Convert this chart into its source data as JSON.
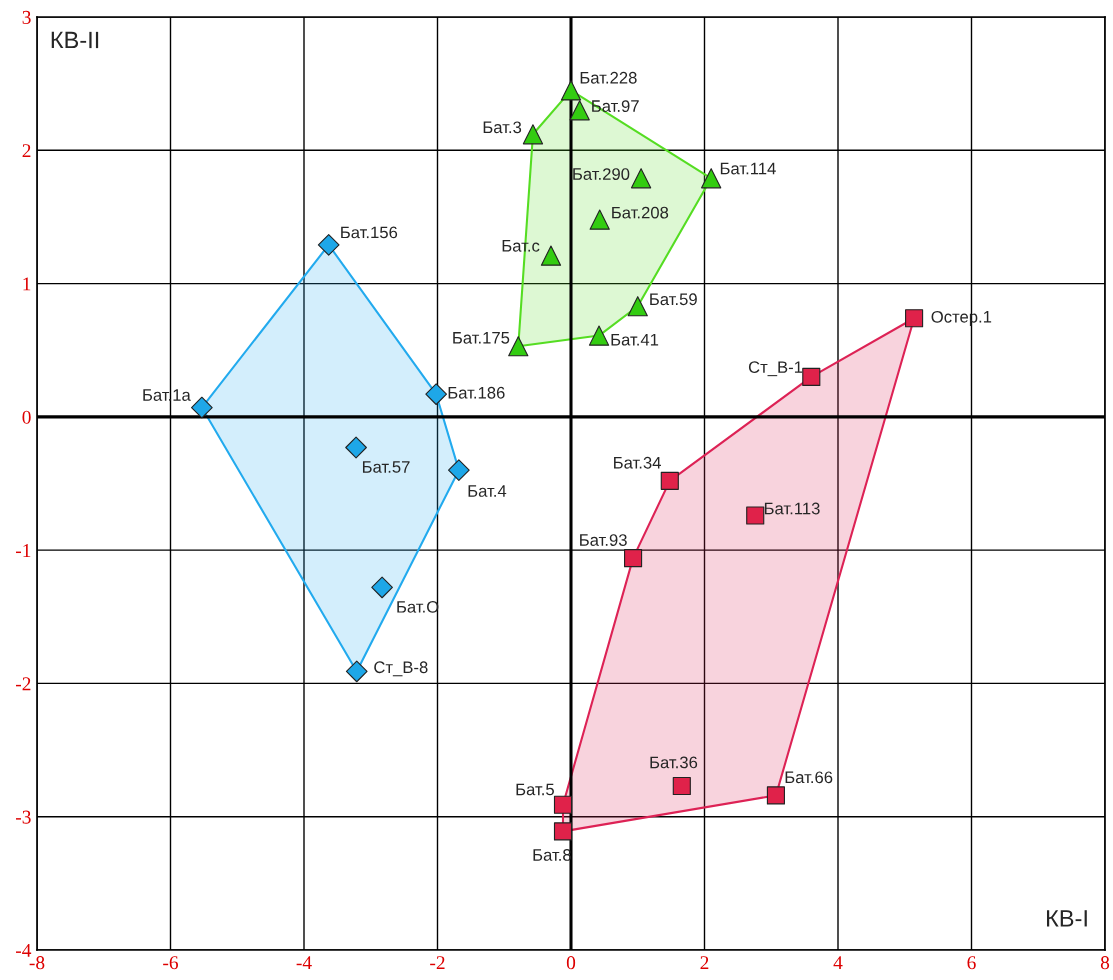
{
  "chart_data": {
    "type": "scatter",
    "xlabel": "КВ-I",
    "ylabel": "КВ-II",
    "xlim": [
      -8,
      8
    ],
    "ylim": [
      -4,
      3
    ],
    "xticks": [
      -8,
      -6,
      -4,
      -2,
      0,
      2,
      4,
      6,
      8
    ],
    "yticks": [
      -4,
      -3,
      -2,
      -1,
      0,
      1,
      2,
      3
    ],
    "grid": true,
    "series": [
      {
        "type": "area",
        "color": "#55dd22",
        "x": [
          0.0,
          2.1,
          1.0,
          0.42,
          -0.79,
          -0.57,
          0.0
        ],
        "values": [
          2.45,
          1.79,
          0.83,
          0.61,
          0.53,
          2.12,
          2.45
        ]
      },
      {
        "type": "area",
        "color": "#22aaee",
        "x": [
          -3.63,
          -2.02,
          -1.68,
          -3.21,
          -5.53,
          -3.63
        ],
        "values": [
          1.29,
          0.17,
          -0.4,
          -1.91,
          0.07,
          1.29
        ]
      },
      {
        "type": "area",
        "color": "#dd2255",
        "x": [
          5.14,
          3.07,
          -0.12,
          -0.12,
          0.93,
          1.48,
          3.6,
          5.14
        ],
        "values": [
          0.74,
          -2.84,
          -3.11,
          -2.91,
          -1.06,
          -0.48,
          0.3,
          0.74
        ]
      },
      {
        "marker": "triangle",
        "color": "#33cc11",
        "x": [
          0.0,
          0.13,
          -0.57,
          1.05,
          2.1,
          0.43,
          -0.3,
          1.0,
          0.42,
          -0.79
        ],
        "values": [
          2.45,
          2.3,
          2.12,
          1.79,
          1.79,
          1.48,
          1.21,
          0.83,
          0.61,
          0.53
        ]
      },
      {
        "marker": "diamond",
        "color": "#1ea7e8",
        "x": [
          -3.63,
          -5.53,
          -2.02,
          -3.22,
          -1.68,
          -2.83,
          -3.21
        ],
        "values": [
          1.29,
          0.07,
          0.17,
          -0.23,
          -0.4,
          -1.28,
          -1.91
        ]
      },
      {
        "marker": "square",
        "color": "#e0224a",
        "x": [
          5.14,
          3.6,
          1.48,
          2.76,
          0.93,
          1.66,
          3.07,
          -0.12,
          -0.12
        ],
        "values": [
          0.74,
          0.3,
          -0.48,
          -0.74,
          -1.06,
          -2.77,
          -2.84,
          -2.91,
          -3.11
        ]
      }
    ],
    "annotations": [
      {
        "text": "Бат.228",
        "x": 0.0,
        "y": 2.45
      },
      {
        "text": "Бат.97",
        "x": 0.13,
        "y": 2.3
      },
      {
        "text": "Бат.3",
        "x": -0.57,
        "y": 2.12
      },
      {
        "text": "Бат.290",
        "x": 1.05,
        "y": 1.79
      },
      {
        "text": "Бат.114",
        "x": 2.1,
        "y": 1.79
      },
      {
        "text": "Бат.208",
        "x": 0.43,
        "y": 1.48
      },
      {
        "text": "Бат.с",
        "x": -0.3,
        "y": 1.21
      },
      {
        "text": "Бат.59",
        "x": 1.0,
        "y": 0.83
      },
      {
        "text": "Бат.41",
        "x": 0.42,
        "y": 0.61
      },
      {
        "text": "Бат.175",
        "x": -0.79,
        "y": 0.53
      },
      {
        "text": "Бат.156",
        "x": -3.63,
        "y": 1.29
      },
      {
        "text": "Бат.1а",
        "x": -5.53,
        "y": 0.07
      },
      {
        "text": "Бат.186",
        "x": -2.02,
        "y": 0.17
      },
      {
        "text": "Бат.57",
        "x": -3.22,
        "y": -0.23
      },
      {
        "text": "Бат.4",
        "x": -1.68,
        "y": -0.4
      },
      {
        "text": "Бат.О",
        "x": -2.83,
        "y": -1.28
      },
      {
        "text": "Ст_В-8",
        "x": -3.21,
        "y": -1.91
      },
      {
        "text": "Остер.1",
        "x": 5.14,
        "y": 0.74
      },
      {
        "text": "Ст_В-1",
        "x": 3.6,
        "y": 0.3
      },
      {
        "text": "Бат.34",
        "x": 1.48,
        "y": -0.48
      },
      {
        "text": "Бат.113",
        "x": 2.76,
        "y": -0.74
      },
      {
        "text": "Бат.93",
        "x": 0.93,
        "y": -1.06
      },
      {
        "text": "Бат.36",
        "x": 1.66,
        "y": -2.77
      },
      {
        "text": "Бат.66",
        "x": 3.07,
        "y": -2.84
      },
      {
        "text": "Бат.5",
        "x": -0.12,
        "y": -2.91
      },
      {
        "text": "Бат.8",
        "x": -0.12,
        "y": -3.11
      }
    ]
  }
}
